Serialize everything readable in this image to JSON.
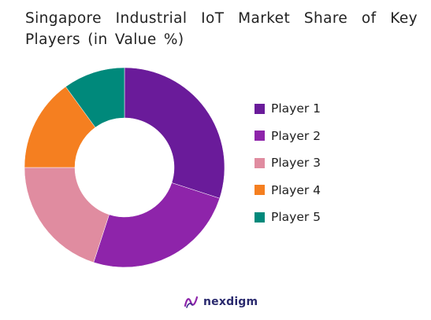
{
  "title": "Singapore Industrial IoT Market Share of Key Players (in Value %)",
  "chart_data": {
    "type": "pie",
    "donut": true,
    "title": "Singapore Industrial IoT Market Share of Key Players (in Value %)",
    "categories": [
      "Player 1",
      "Player 2",
      "Player 3",
      "Player 4",
      "Player 5"
    ],
    "values": [
      30,
      25,
      20,
      15,
      10
    ],
    "colors": [
      "#6a1b9a",
      "#8e24aa",
      "#e08ca0",
      "#f57f20",
      "#00897b"
    ],
    "legend": "right"
  },
  "brand": {
    "name": "nexdigm",
    "icon": "nexdigm-logo-icon"
  }
}
